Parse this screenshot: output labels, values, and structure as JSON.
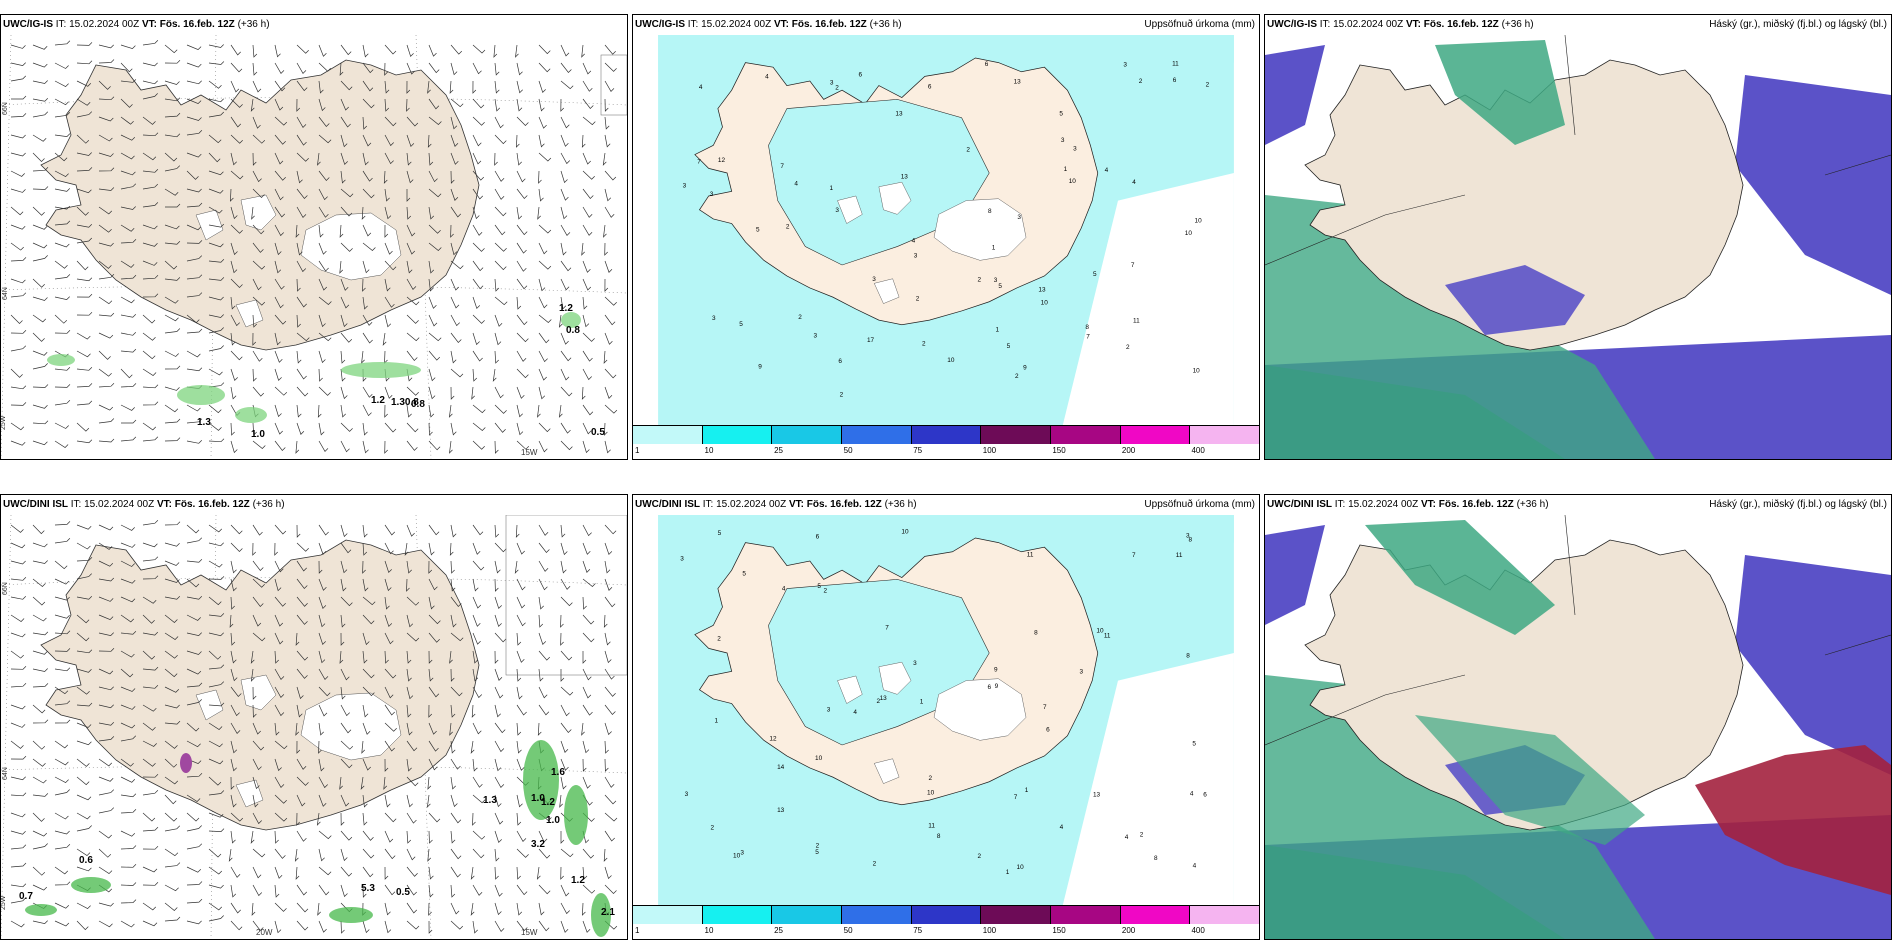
{
  "panels": [
    {
      "id": "top-left",
      "model": "UWC/IG-IS",
      "it_label": "IT:",
      "it_value": "15.02.2024 00Z",
      "vt_label": "VT:",
      "vt_value": "Fös. 16.feb. 12Z",
      "lead": "(+36 h)",
      "right_title": "",
      "lat_labels": [
        "66N",
        "64N",
        "25W"
      ],
      "lon_labels": [
        "15W"
      ],
      "map_numbers": [
        "1.3",
        "1.0",
        "1.2",
        "1.30.8",
        "0.8",
        "1.2",
        "0.5",
        "0.8"
      ]
    },
    {
      "id": "top-middle",
      "model": "UWC/IG-IS",
      "it_label": "IT:",
      "it_value": "15.02.2024 00Z",
      "vt_label": "VT:",
      "vt_value": "Fös. 16.feb. 12Z",
      "lead": "(+36 h)",
      "right_title": "Uppsöfnuð úrkoma (mm)",
      "legend_ticks": [
        "1",
        "10",
        "25",
        "50",
        "75",
        "100",
        "150",
        "200",
        "400"
      ],
      "legend_colors": [
        "#c2f9f9",
        "#16f0f0",
        "#19c8e6",
        "#2f6fe8",
        "#2d36c8",
        "#6d0b57",
        "#a70683",
        "#f007c5",
        "#f5b4f0"
      ],
      "map_numbers": [
        "9",
        "2",
        "2",
        "7",
        "4",
        "5",
        "10",
        "3",
        "3",
        "3",
        "5",
        "7",
        "4",
        "3",
        "10",
        "3",
        "3",
        "2",
        "5",
        "4",
        "8",
        "5",
        "6",
        "7",
        "3",
        "3",
        "2",
        "4",
        "10",
        "13",
        "10",
        "11",
        "5",
        "17",
        "6",
        "2",
        "6",
        "12",
        "10",
        "13",
        "6",
        "8",
        "2",
        "11",
        "13",
        "7",
        "2",
        "2",
        "1",
        "6",
        "3",
        "2",
        "1",
        "3",
        "4",
        "10",
        "2",
        "13",
        "2",
        "3",
        "3",
        "2",
        "1",
        "5",
        "3",
        "9",
        "4",
        "1"
      ]
    },
    {
      "id": "top-right",
      "model": "UWC/IG-IS",
      "it_label": "IT:",
      "it_value": "15.02.2024 00Z",
      "vt_label": "VT:",
      "vt_value": "Fös. 16.feb. 12Z",
      "lead": "(+36 h)",
      "right_title": "Háský (gr.), miðský (fj.bl.) og lágský (bl.)"
    },
    {
      "id": "bottom-left",
      "model": "UWC/DINI ISL",
      "it_label": "IT:",
      "it_value": "15.02.2024 00Z",
      "vt_label": "VT:",
      "vt_value": "Fös. 16.feb. 12Z",
      "lead": "(+36 h)",
      "right_title": "",
      "lat_labels": [
        "66N",
        "64N",
        "25W"
      ],
      "lon_labels": [
        "20W",
        "15W"
      ],
      "map_numbers": [
        "0.6",
        "0.7",
        "1.0",
        "1.2",
        "1.0",
        "3.2",
        "1.2",
        "0.5",
        "5.3",
        "2.1",
        "1.6",
        "1.3"
      ]
    },
    {
      "id": "bottom-middle",
      "model": "UWC/DINI ISL",
      "it_label": "IT:",
      "it_value": "15.02.2024 00Z",
      "vt_label": "VT:",
      "vt_value": "Fös. 16.feb. 12Z",
      "lead": "(+36 h)",
      "right_title": "Uppsöfnuð úrkoma (mm)",
      "legend_ticks": [
        "1",
        "10",
        "25",
        "50",
        "75",
        "100",
        "150",
        "200",
        "400"
      ],
      "legend_colors": [
        "#c2f9f9",
        "#16f0f0",
        "#19c8e6",
        "#2f6fe8",
        "#2d36c8",
        "#6d0b57",
        "#a70683",
        "#f007c5",
        "#f5b4f0"
      ],
      "map_numbers": [
        "2",
        "1",
        "2",
        "4",
        "6",
        "5",
        "3",
        "8",
        "10",
        "7",
        "7",
        "8",
        "13",
        "10",
        "11",
        "6",
        "2",
        "5",
        "4",
        "3",
        "7",
        "8",
        "9",
        "10",
        "11",
        "12",
        "3",
        "14",
        "5",
        "6",
        "1",
        "10",
        "2",
        "11",
        "13",
        "7",
        "4",
        "2",
        "8",
        "2",
        "9",
        "3",
        "6",
        "3",
        "2",
        "1",
        "5",
        "2",
        "4",
        "11",
        "3",
        "8",
        "4",
        "13",
        "10",
        "10",
        "2",
        "3",
        "5",
        "1",
        "4"
      ]
    },
    {
      "id": "bottom-right",
      "model": "UWC/DINI ISL",
      "it_label": "IT:",
      "it_value": "15.02.2024 00Z",
      "vt_label": "VT:",
      "vt_value": "Fös. 16.feb. 12Z",
      "lead": "(+36 h)",
      "right_title": "Háský (gr.), miðský (fj.bl.) og lágský (bl.)"
    }
  ],
  "colors": {
    "land": "#efe4d6",
    "precip_light": "#b6f6f6",
    "low_cloud": "#5b52c8",
    "high_cloud": "#3ea883",
    "mid_cloud_red": "#a3213e",
    "ocean_dark": "#2f6a87"
  }
}
